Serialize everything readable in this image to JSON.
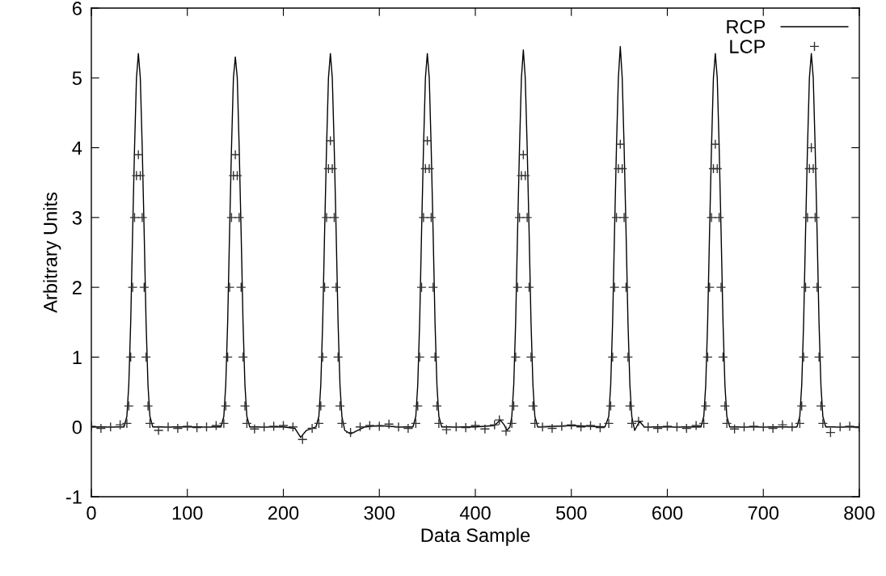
{
  "chart_data": {
    "type": "line",
    "xlabel": "Data Sample",
    "ylabel": "Arbitrary Units",
    "xlim": [
      0,
      800
    ],
    "xticks": [
      0,
      100,
      200,
      300,
      400,
      500,
      600,
      700,
      800
    ],
    "ylim": [
      -1,
      6
    ],
    "yticks": [
      -1,
      0,
      1,
      2,
      3,
      4,
      5,
      6
    ],
    "grid": false,
    "legend": "top right",
    "series": [
      {
        "name": "RCP",
        "color": "#000000",
        "marker": "none",
        "line_style": "solid",
        "x": [
          0,
          20,
          34,
          37,
          39,
          41,
          43,
          45,
          47,
          49,
          51,
          53,
          55,
          57,
          59,
          61,
          64,
          100,
          135,
          138,
          140,
          142,
          144,
          146,
          148,
          150,
          152,
          154,
          156,
          158,
          160,
          162,
          165,
          200,
          212,
          218,
          224,
          234,
          237,
          239,
          241,
          243,
          245,
          247,
          249,
          251,
          253,
          255,
          257,
          259,
          261,
          264,
          270,
          285,
          300,
          320,
          335,
          338,
          340,
          342,
          344,
          346,
          348,
          350,
          352,
          354,
          356,
          358,
          360,
          362,
          365,
          400,
          420,
          426,
          430,
          433,
          436,
          438,
          440,
          442,
          444,
          446,
          448,
          450,
          452,
          454,
          456,
          458,
          460,
          462,
          465,
          500,
          535,
          539,
          541,
          543,
          545,
          547,
          549,
          551,
          553,
          555,
          557,
          559,
          561,
          563,
          566,
          571,
          576,
          600,
          635,
          638,
          640,
          642,
          644,
          646,
          648,
          650,
          652,
          654,
          656,
          658,
          660,
          662,
          665,
          700,
          735,
          738,
          740,
          742,
          744,
          746,
          748,
          750,
          752,
          754,
          756,
          758,
          760,
          762,
          765,
          800
        ],
        "values": [
          0,
          0,
          0,
          0.15,
          0.6,
          1.5,
          2.8,
          4.0,
          5.0,
          5.35,
          5.0,
          4.0,
          2.8,
          1.5,
          0.6,
          0.15,
          0,
          0,
          0,
          0.15,
          0.6,
          1.5,
          2.8,
          4.0,
          5.0,
          5.3,
          5.0,
          4.0,
          2.8,
          1.5,
          0.6,
          0.15,
          0,
          0,
          -0.02,
          -0.15,
          -0.05,
          0,
          0.15,
          0.6,
          1.5,
          2.8,
          4.0,
          5.0,
          5.35,
          5.0,
          4.0,
          2.8,
          1.5,
          0.6,
          0.15,
          -0.05,
          -0.1,
          0,
          0.02,
          0,
          0,
          0.15,
          0.6,
          1.5,
          2.8,
          4.0,
          5.0,
          5.35,
          5.0,
          4.0,
          2.8,
          1.5,
          0.6,
          0.15,
          0,
          0,
          0.02,
          0.1,
          0.03,
          -0.05,
          0,
          0.15,
          0.6,
          1.5,
          2.8,
          4.0,
          5.0,
          5.4,
          5.0,
          4.0,
          2.8,
          1.5,
          0.6,
          0.15,
          0,
          0.02,
          0,
          0.15,
          0.6,
          1.5,
          2.8,
          4.0,
          5.0,
          5.45,
          5.0,
          4.0,
          2.8,
          1.5,
          0.6,
          0.15,
          -0.05,
          0.08,
          0,
          0,
          0,
          0.15,
          0.6,
          1.5,
          2.8,
          4.0,
          5.0,
          5.35,
          5.0,
          4.0,
          2.8,
          1.5,
          0.6,
          0.15,
          0,
          0,
          0,
          0.15,
          0.6,
          1.5,
          2.8,
          4.0,
          5.0,
          5.35,
          5.0,
          4.0,
          2.8,
          1.5,
          0.6,
          0.15,
          0,
          0
        ]
      },
      {
        "name": "LCP",
        "type": "scatter",
        "color": "#333333",
        "marker": "cross",
        "x": [
          0,
          10,
          20,
          30,
          37,
          39,
          41,
          43,
          45,
          47,
          49,
          51,
          53,
          55,
          57,
          59,
          61,
          70,
          80,
          90,
          100,
          110,
          120,
          130,
          138,
          140,
          142,
          144,
          146,
          148,
          150,
          152,
          154,
          156,
          158,
          160,
          162,
          170,
          180,
          190,
          200,
          210,
          220,
          230,
          237,
          239,
          241,
          243,
          245,
          247,
          249,
          251,
          253,
          255,
          257,
          259,
          261,
          270,
          280,
          290,
          300,
          310,
          320,
          330,
          338,
          340,
          342,
          344,
          346,
          348,
          350,
          352,
          354,
          356,
          358,
          360,
          362,
          370,
          380,
          390,
          400,
          410,
          420,
          425,
          432,
          438,
          440,
          442,
          444,
          446,
          448,
          450,
          452,
          454,
          456,
          458,
          460,
          462,
          470,
          480,
          490,
          500,
          510,
          520,
          530,
          539,
          541,
          543,
          545,
          547,
          549,
          551,
          553,
          555,
          557,
          559,
          561,
          563,
          570,
          580,
          590,
          600,
          610,
          620,
          630,
          638,
          640,
          642,
          644,
          646,
          648,
          650,
          652,
          654,
          656,
          658,
          660,
          662,
          670,
          680,
          690,
          700,
          710,
          720,
          730,
          738,
          740,
          742,
          744,
          746,
          748,
          750,
          752,
          754,
          756,
          758,
          760,
          762,
          770,
          780,
          790,
          800
        ],
        "values": [
          0.01,
          -0.02,
          0,
          0.03,
          0.05,
          0.3,
          1.0,
          2.0,
          3.0,
          3.6,
          3.9,
          3.6,
          3.0,
          2.0,
          1.0,
          0.3,
          0.05,
          -0.05,
          0,
          -0.02,
          0.01,
          -0.01,
          0,
          0.02,
          0.05,
          0.3,
          1.0,
          2.0,
          3.0,
          3.6,
          3.9,
          3.6,
          3.0,
          2.0,
          1.0,
          0.3,
          0.05,
          -0.03,
          0,
          0.01,
          0.02,
          0,
          -0.18,
          -0.02,
          0.05,
          0.3,
          1.0,
          2.0,
          3.0,
          3.7,
          4.1,
          3.7,
          3.0,
          2.0,
          1.0,
          0.3,
          0.05,
          -0.08,
          0,
          0.02,
          0.01,
          0.04,
          0,
          -0.02,
          0.05,
          0.3,
          1.0,
          2.0,
          3.0,
          3.7,
          4.1,
          3.7,
          3.0,
          2.0,
          1.0,
          0.3,
          0.05,
          -0.04,
          0,
          -0.01,
          0.02,
          -0.03,
          0.03,
          0.1,
          -0.06,
          0.05,
          0.3,
          1.0,
          2.0,
          3.0,
          3.6,
          3.9,
          3.6,
          3.0,
          2.0,
          1.0,
          0.3,
          0.05,
          0,
          -0.02,
          0.01,
          0.03,
          0,
          0.02,
          -0.01,
          0.05,
          0.3,
          1.0,
          2.0,
          3.0,
          3.7,
          4.05,
          3.7,
          3.0,
          2.0,
          1.0,
          0.3,
          0.05,
          0.08,
          0,
          -0.02,
          0.01,
          0,
          -0.02,
          0.02,
          0.05,
          0.3,
          1.0,
          2.0,
          3.0,
          3.7,
          4.05,
          3.7,
          3.0,
          2.0,
          1.0,
          0.3,
          0.05,
          -0.03,
          0,
          0.01,
          0,
          -0.02,
          0.03,
          0,
          0.05,
          0.3,
          1.0,
          2.0,
          3.0,
          3.7,
          4.0,
          3.7,
          3.0,
          2.0,
          1.0,
          0.3,
          0.05,
          -0.08,
          0,
          0.01,
          -0.01
        ]
      }
    ]
  }
}
